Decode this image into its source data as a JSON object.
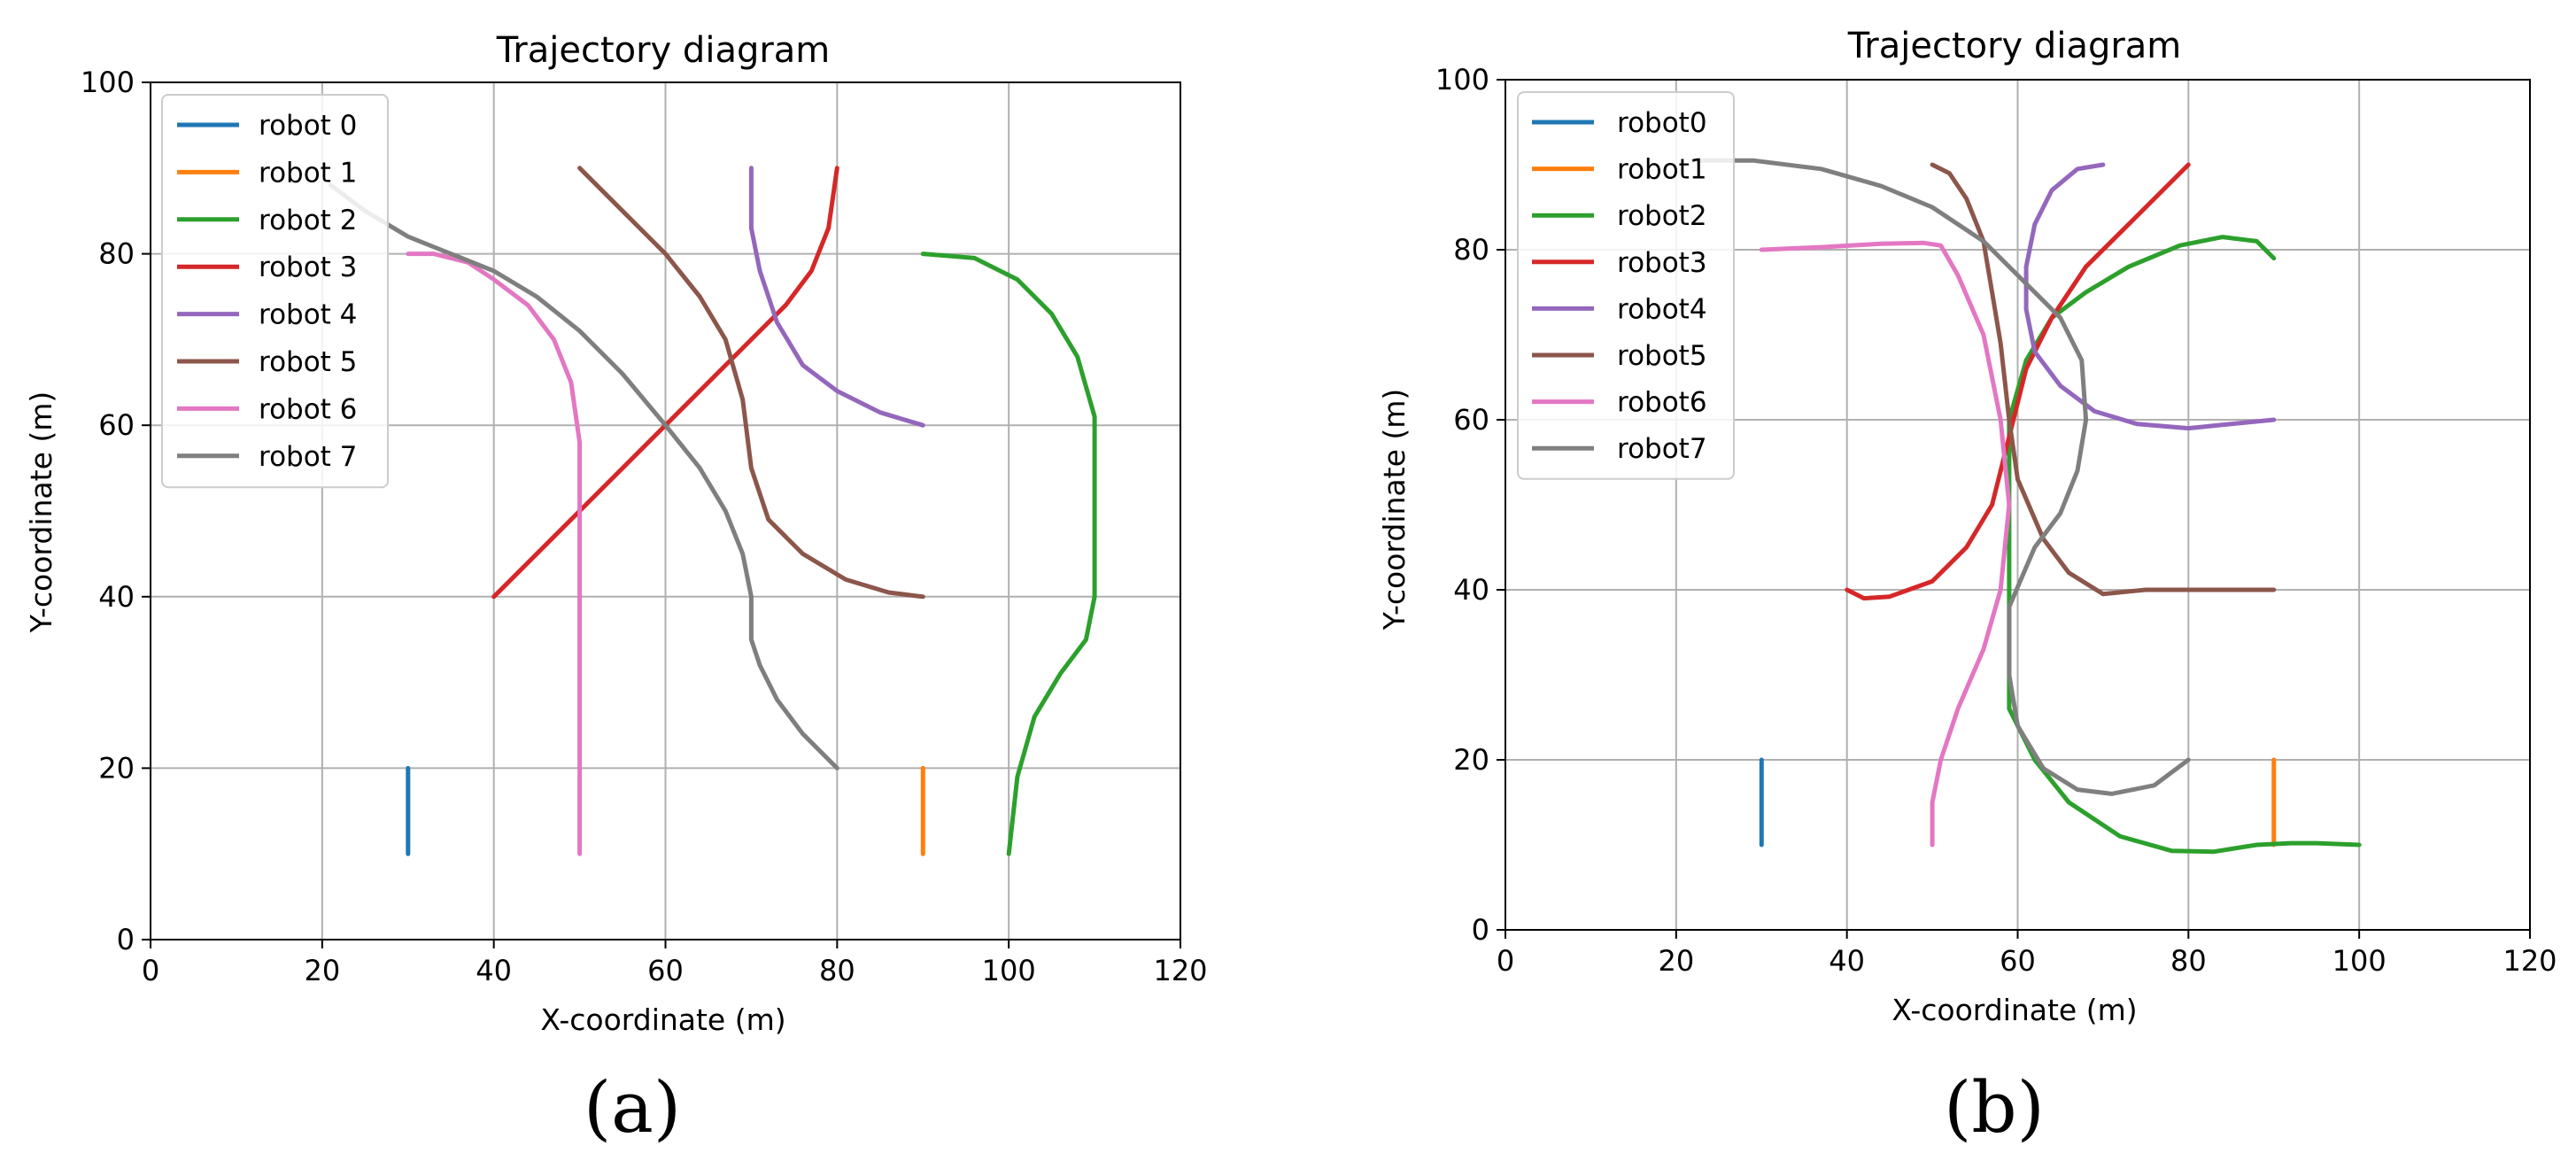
{
  "chart_data": [
    {
      "type": "line",
      "panel_label": "(a)",
      "title": "Trajectory diagram",
      "xlabel": "X-coordinate (m)",
      "ylabel": "Y-coordinate (m)",
      "xlim": [
        0,
        120
      ],
      "ylim": [
        0,
        100
      ],
      "xticks": [
        0,
        20,
        40,
        60,
        80,
        100,
        120
      ],
      "yticks": [
        0,
        20,
        40,
        60,
        80,
        100
      ],
      "grid": true,
      "legend_position": "upper-left",
      "series": [
        {
          "name": "robot 0",
          "color": "#1f77b4",
          "points": [
            [
              30,
              20
            ],
            [
              30,
              10
            ]
          ]
        },
        {
          "name": "robot 1",
          "color": "#ff7f0e",
          "points": [
            [
              90,
              20
            ],
            [
              90,
              10
            ]
          ]
        },
        {
          "name": "robot 2",
          "color": "#2ca02c",
          "points": [
            [
              90,
              80
            ],
            [
              96,
              79.5
            ],
            [
              101,
              77
            ],
            [
              105,
              73
            ],
            [
              108,
              68
            ],
            [
              110,
              61
            ],
            [
              110,
              40
            ],
            [
              109,
              35
            ],
            [
              106,
              31
            ],
            [
              103,
              26
            ],
            [
              101,
              19
            ],
            [
              100,
              10
            ]
          ]
        },
        {
          "name": "robot 3",
          "color": "#d62728",
          "points": [
            [
              40,
              40
            ],
            [
              70,
              70
            ],
            [
              74,
              74
            ],
            [
              77,
              78
            ],
            [
              79,
              83
            ],
            [
              80,
              90
            ]
          ]
        },
        {
          "name": "robot 4",
          "color": "#9467bd",
          "points": [
            [
              70,
              90
            ],
            [
              70,
              83
            ],
            [
              71,
              78
            ],
            [
              73,
              72
            ],
            [
              76,
              67
            ],
            [
              80,
              64
            ],
            [
              85,
              61.5
            ],
            [
              90,
              60
            ]
          ]
        },
        {
          "name": "robot 5",
          "color": "#8c564b",
          "points": [
            [
              50,
              90
            ],
            [
              55,
              85
            ],
            [
              60,
              80
            ],
            [
              64,
              75
            ],
            [
              67,
              70
            ],
            [
              69,
              63
            ],
            [
              70,
              55
            ],
            [
              72,
              49
            ],
            [
              76,
              45
            ],
            [
              81,
              42
            ],
            [
              86,
              40.5
            ],
            [
              90,
              40
            ]
          ]
        },
        {
          "name": "robot 6",
          "color": "#e377c2",
          "points": [
            [
              30,
              80
            ],
            [
              33,
              80
            ],
            [
              37,
              79
            ],
            [
              40,
              77
            ],
            [
              44,
              74
            ],
            [
              47,
              70
            ],
            [
              49,
              65
            ],
            [
              50,
              58
            ],
            [
              50,
              10
            ]
          ]
        },
        {
          "name": "robot 7",
          "color": "#7f7f7f",
          "points": [
            [
              21,
              88
            ],
            [
              25,
              85
            ],
            [
              30,
              82
            ],
            [
              35,
              80
            ],
            [
              40,
              78
            ],
            [
              45,
              75
            ],
            [
              50,
              71
            ],
            [
              55,
              66
            ],
            [
              60,
              60
            ],
            [
              64,
              55
            ],
            [
              67,
              50
            ],
            [
              69,
              45
            ],
            [
              70,
              40
            ],
            [
              70,
              35
            ],
            [
              71,
              32
            ],
            [
              73,
              28
            ],
            [
              76,
              24
            ],
            [
              80,
              20
            ]
          ]
        }
      ]
    },
    {
      "type": "line",
      "panel_label": "(b)",
      "title": "Trajectory diagram",
      "xlabel": "X-coordinate (m)",
      "ylabel": "Y-coordinate (m)",
      "xlim": [
        0,
        120
      ],
      "ylim": [
        0,
        100
      ],
      "xticks": [
        0,
        20,
        40,
        60,
        80,
        100,
        120
      ],
      "yticks": [
        0,
        20,
        40,
        60,
        80,
        100
      ],
      "grid": true,
      "legend_position": "upper-left",
      "series": [
        {
          "name": "robot0",
          "color": "#1f77b4",
          "points": [
            [
              30,
              20
            ],
            [
              30,
              10
            ]
          ]
        },
        {
          "name": "robot1",
          "color": "#ff7f0e",
          "points": [
            [
              90,
              20
            ],
            [
              90,
              10
            ]
          ]
        },
        {
          "name": "robot2",
          "color": "#2ca02c",
          "points": [
            [
              90,
              79
            ],
            [
              88,
              81
            ],
            [
              84,
              81.5
            ],
            [
              79,
              80.5
            ],
            [
              73,
              78
            ],
            [
              68,
              75
            ],
            [
              64,
              72
            ],
            [
              61,
              67
            ],
            [
              59,
              60
            ],
            [
              59,
              40
            ],
            [
              59,
              35
            ],
            [
              59,
              26
            ],
            [
              62,
              20
            ],
            [
              66,
              15
            ],
            [
              72,
              11
            ],
            [
              78,
              9.3
            ],
            [
              83,
              9.2
            ],
            [
              88,
              10
            ],
            [
              92,
              10.2
            ],
            [
              95,
              10.2
            ],
            [
              100,
              10
            ]
          ]
        },
        {
          "name": "robot3",
          "color": "#d62728",
          "points": [
            [
              40,
              40
            ],
            [
              42,
              39
            ],
            [
              45,
              39.2
            ],
            [
              50,
              41
            ],
            [
              54,
              45
            ],
            [
              57,
              50
            ],
            [
              59,
              58
            ],
            [
              61,
              66
            ],
            [
              64,
              72
            ],
            [
              68,
              78
            ],
            [
              72,
              82
            ],
            [
              76,
              86
            ],
            [
              80,
              90
            ]
          ]
        },
        {
          "name": "robot4",
          "color": "#9467bd",
          "points": [
            [
              70,
              90
            ],
            [
              67,
              89.5
            ],
            [
              64,
              87
            ],
            [
              62,
              83
            ],
            [
              61,
              78
            ],
            [
              61,
              73
            ],
            [
              62,
              68
            ],
            [
              65,
              64
            ],
            [
              69,
              61
            ],
            [
              74,
              59.5
            ],
            [
              80,
              59
            ],
            [
              85,
              59.5
            ],
            [
              90,
              60
            ]
          ]
        },
        {
          "name": "robot5",
          "color": "#8c564b",
          "points": [
            [
              50,
              90
            ],
            [
              52,
              89
            ],
            [
              54,
              86
            ],
            [
              56,
              81
            ],
            [
              57,
              75
            ],
            [
              58,
              69
            ],
            [
              59,
              60
            ],
            [
              60,
              53
            ],
            [
              63,
              46
            ],
            [
              66,
              42
            ],
            [
              70,
              39.5
            ],
            [
              75,
              40
            ],
            [
              80,
              40
            ],
            [
              90,
              40
            ]
          ]
        },
        {
          "name": "robot6",
          "color": "#e377c2",
          "points": [
            [
              30,
              80
            ],
            [
              37,
              80.3
            ],
            [
              44,
              80.7
            ],
            [
              49,
              80.8
            ],
            [
              51,
              80.5
            ],
            [
              53,
              77
            ],
            [
              56,
              70
            ],
            [
              58,
              60
            ],
            [
              59,
              50
            ],
            [
              58,
              40
            ],
            [
              56,
              33
            ],
            [
              53,
              26
            ],
            [
              51,
              20
            ],
            [
              50,
              15
            ],
            [
              50,
              10
            ]
          ]
        },
        {
          "name": "robot7",
          "color": "#7f7f7f",
          "points": [
            [
              22,
              90.5
            ],
            [
              29,
              90.5
            ],
            [
              37,
              89.5
            ],
            [
              44,
              87.5
            ],
            [
              50,
              85
            ],
            [
              56,
              81
            ],
            [
              61,
              76
            ],
            [
              65,
              72
            ],
            [
              67.5,
              67
            ],
            [
              68,
              60
            ],
            [
              67,
              54
            ],
            [
              65,
              49
            ],
            [
              62,
              45
            ],
            [
              59,
              38
            ],
            [
              59,
              30
            ],
            [
              60,
              24
            ],
            [
              63,
              19
            ],
            [
              67,
              16.5
            ],
            [
              71,
              16
            ],
            [
              76,
              17
            ],
            [
              80,
              20
            ]
          ]
        }
      ]
    }
  ]
}
